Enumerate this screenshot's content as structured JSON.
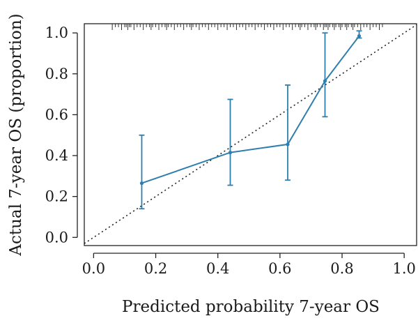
{
  "chart_data": {
    "type": "line",
    "title": "",
    "xlabel": "Predicted probability 7-year OS",
    "ylabel": "Actual 7-year OS (proportion)",
    "xlim": [
      -0.03,
      1.04
    ],
    "ylim": [
      -0.04,
      1.045
    ],
    "x_ticks": [
      0.0,
      0.2,
      0.4,
      0.6,
      0.8,
      1.0
    ],
    "x_tick_labels": [
      "0.0",
      "0.2",
      "0.4",
      "0.6",
      "0.8",
      "1.0"
    ],
    "y_ticks": [
      0.0,
      0.2,
      0.4,
      0.6,
      0.8,
      1.0
    ],
    "y_tick_labels": [
      "0.0",
      "0.2",
      "0.4",
      "0.6",
      "0.8",
      "1.0"
    ],
    "grid": false,
    "reference_line": {
      "from": [
        0,
        0
      ],
      "to": [
        1,
        1
      ],
      "style": "dotted"
    },
    "series": [
      {
        "points": [
          {
            "x": 0.155,
            "y": 0.265,
            "lower": 0.14,
            "upper": 0.5
          },
          {
            "x": 0.44,
            "y": 0.415,
            "lower": 0.255,
            "upper": 0.675
          },
          {
            "x": 0.625,
            "y": 0.455,
            "lower": 0.28,
            "upper": 0.745
          },
          {
            "x": 0.745,
            "y": 0.765,
            "lower": 0.59,
            "upper": 1.0
          },
          {
            "x": 0.855,
            "y": 0.985,
            "lower": 0.975,
            "upper": 1.01
          }
        ]
      }
    ],
    "rug_x": [
      0.06,
      0.07,
      0.08,
      0.09,
      0.1,
      0.105,
      0.11,
      0.115,
      0.12,
      0.13,
      0.14,
      0.15,
      0.16,
      0.17,
      0.18,
      0.185,
      0.19,
      0.2,
      0.21,
      0.22,
      0.23,
      0.235,
      0.24,
      0.25,
      0.26,
      0.27,
      0.28,
      0.29,
      0.3,
      0.31,
      0.315,
      0.32,
      0.33,
      0.34,
      0.35,
      0.36,
      0.37,
      0.38,
      0.39,
      0.4,
      0.41,
      0.42,
      0.43,
      0.44,
      0.45,
      0.46,
      0.47,
      0.48,
      0.49,
      0.5,
      0.51,
      0.52,
      0.53,
      0.54,
      0.55,
      0.56,
      0.57,
      0.58,
      0.59,
      0.6,
      0.61,
      0.62,
      0.63,
      0.64,
      0.65,
      0.66,
      0.665,
      0.67,
      0.68,
      0.69,
      0.7,
      0.71,
      0.715,
      0.72,
      0.73,
      0.74,
      0.745,
      0.75,
      0.755,
      0.76,
      0.77,
      0.775,
      0.78,
      0.79,
      0.795,
      0.8,
      0.81,
      0.815,
      0.82,
      0.83,
      0.835,
      0.84,
      0.85,
      0.86,
      0.87,
      0.88,
      0.89,
      0.9,
      0.91,
      0.92,
      0.93
    ],
    "colors": {
      "series": "#2f7fae",
      "reference": "#222222",
      "axis": "#222222",
      "rug": "#333333"
    }
  }
}
